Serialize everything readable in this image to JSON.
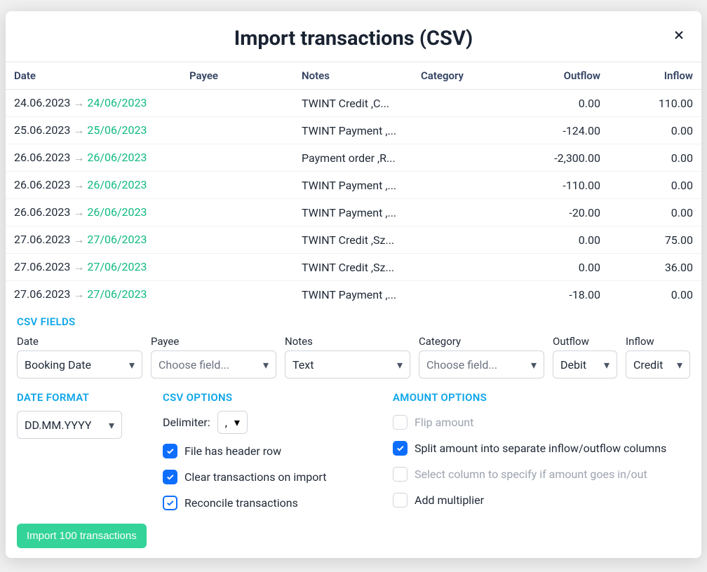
{
  "title": "Import transactions (CSV)",
  "columns": {
    "date": "Date",
    "payee": "Payee",
    "notes": "Notes",
    "category": "Category",
    "outflow": "Outflow",
    "inflow": "Inflow"
  },
  "rows": [
    {
      "date_orig": "24.06.2023",
      "date_conv": "24/06/2023",
      "payee": "",
      "notes": "TWINT Credit ,C...",
      "category": "",
      "outflow": "0.00",
      "inflow": "110.00"
    },
    {
      "date_orig": "25.06.2023",
      "date_conv": "25/06/2023",
      "payee": "",
      "notes": "TWINT Payment ,...",
      "category": "",
      "outflow": "-124.00",
      "inflow": "0.00"
    },
    {
      "date_orig": "26.06.2023",
      "date_conv": "26/06/2023",
      "payee": "",
      "notes": "Payment order ,R...",
      "category": "",
      "outflow": "-2,300.00",
      "inflow": "0.00"
    },
    {
      "date_orig": "26.06.2023",
      "date_conv": "26/06/2023",
      "payee": "",
      "notes": "TWINT Payment ,...",
      "category": "",
      "outflow": "-110.00",
      "inflow": "0.00"
    },
    {
      "date_orig": "26.06.2023",
      "date_conv": "26/06/2023",
      "payee": "",
      "notes": "TWINT Payment ,...",
      "category": "",
      "outflow": "-20.00",
      "inflow": "0.00"
    },
    {
      "date_orig": "27.06.2023",
      "date_conv": "27/06/2023",
      "payee": "",
      "notes": "TWINT Credit ,Sz...",
      "category": "",
      "outflow": "0.00",
      "inflow": "75.00"
    },
    {
      "date_orig": "27.06.2023",
      "date_conv": "27/06/2023",
      "payee": "",
      "notes": "TWINT Credit ,Sz...",
      "category": "",
      "outflow": "0.00",
      "inflow": "36.00"
    },
    {
      "date_orig": "27.06.2023",
      "date_conv": "27/06/2023",
      "payee": "",
      "notes": "TWINT Payment ,...",
      "category": "",
      "outflow": "-18.00",
      "inflow": "0.00"
    }
  ],
  "csv_fields": {
    "title": "CSV FIELDS",
    "date_label": "Date",
    "date_value": "Booking Date",
    "payee_label": "Payee",
    "payee_value": "Choose field...",
    "notes_label": "Notes",
    "notes_value": "Text",
    "category_label": "Category",
    "category_value": "Choose field...",
    "outflow_label": "Outflow",
    "outflow_value": "Debit",
    "inflow_label": "Inflow",
    "inflow_value": "Credit"
  },
  "date_format": {
    "title": "DATE FORMAT",
    "value": "DD.MM.YYYY"
  },
  "csv_options": {
    "title": "CSV OPTIONS",
    "delimiter_label": "Delimiter:",
    "delimiter_value": ",",
    "header_row": {
      "label": "File has header row",
      "checked": true
    },
    "clear": {
      "label": "Clear transactions on import",
      "checked": true
    },
    "reconcile": {
      "label": "Reconcile transactions",
      "checked": true,
      "outline": true
    }
  },
  "amount_options": {
    "title": "AMOUNT OPTIONS",
    "flip": {
      "label": "Flip amount",
      "checked": false,
      "disabled": true
    },
    "split": {
      "label": "Split amount into separate inflow/outflow columns",
      "checked": true
    },
    "select_col": {
      "label": "Select column to specify if amount goes in/out",
      "checked": false,
      "disabled": true
    },
    "multiplier": {
      "label": "Add multiplier",
      "checked": false
    }
  },
  "import_button": "Import 100 transactions",
  "colors": {
    "accent_blue": "#0d6efd",
    "section_blue": "#0ea5e9",
    "green": "#10b981",
    "import_btn_bg": "#34d399",
    "text": "#1f2937",
    "header_text": "#334362",
    "muted": "#9ca3af",
    "border": "#d1d5db"
  }
}
